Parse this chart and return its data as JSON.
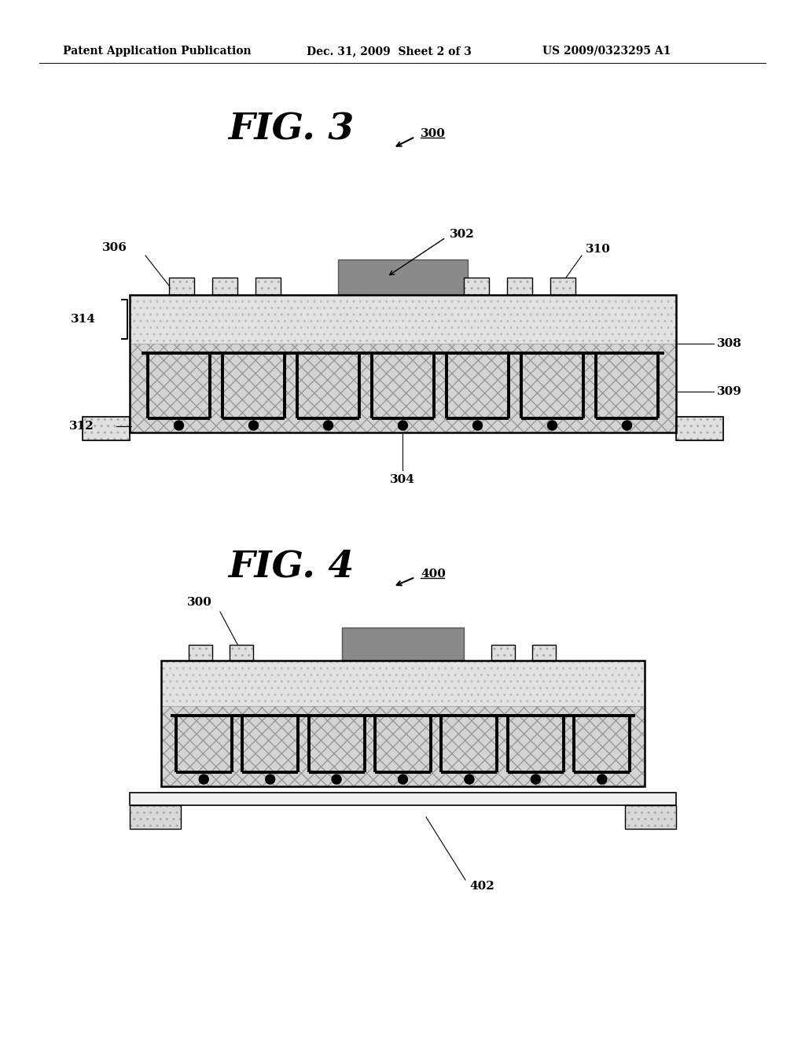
{
  "bg_color": "#ffffff",
  "header_left": "Patent Application Publication",
  "header_mid": "Dec. 31, 2009  Sheet 2 of 3",
  "header_right": "US 2009/0323295 A1",
  "fig3_title": "FIG. 3",
  "fig3_ref": "300",
  "fig4_title": "FIG. 4",
  "fig4_ref": "400",
  "light_gray": "#c8c8c8",
  "med_gray": "#a0a0a0",
  "dark_gray": "#808080",
  "darker_gray": "#606060",
  "hatch_color": "#888888",
  "chip_color": "#909090",
  "black": "#000000",
  "white": "#ffffff",
  "light_fill": "#d8d8d8"
}
